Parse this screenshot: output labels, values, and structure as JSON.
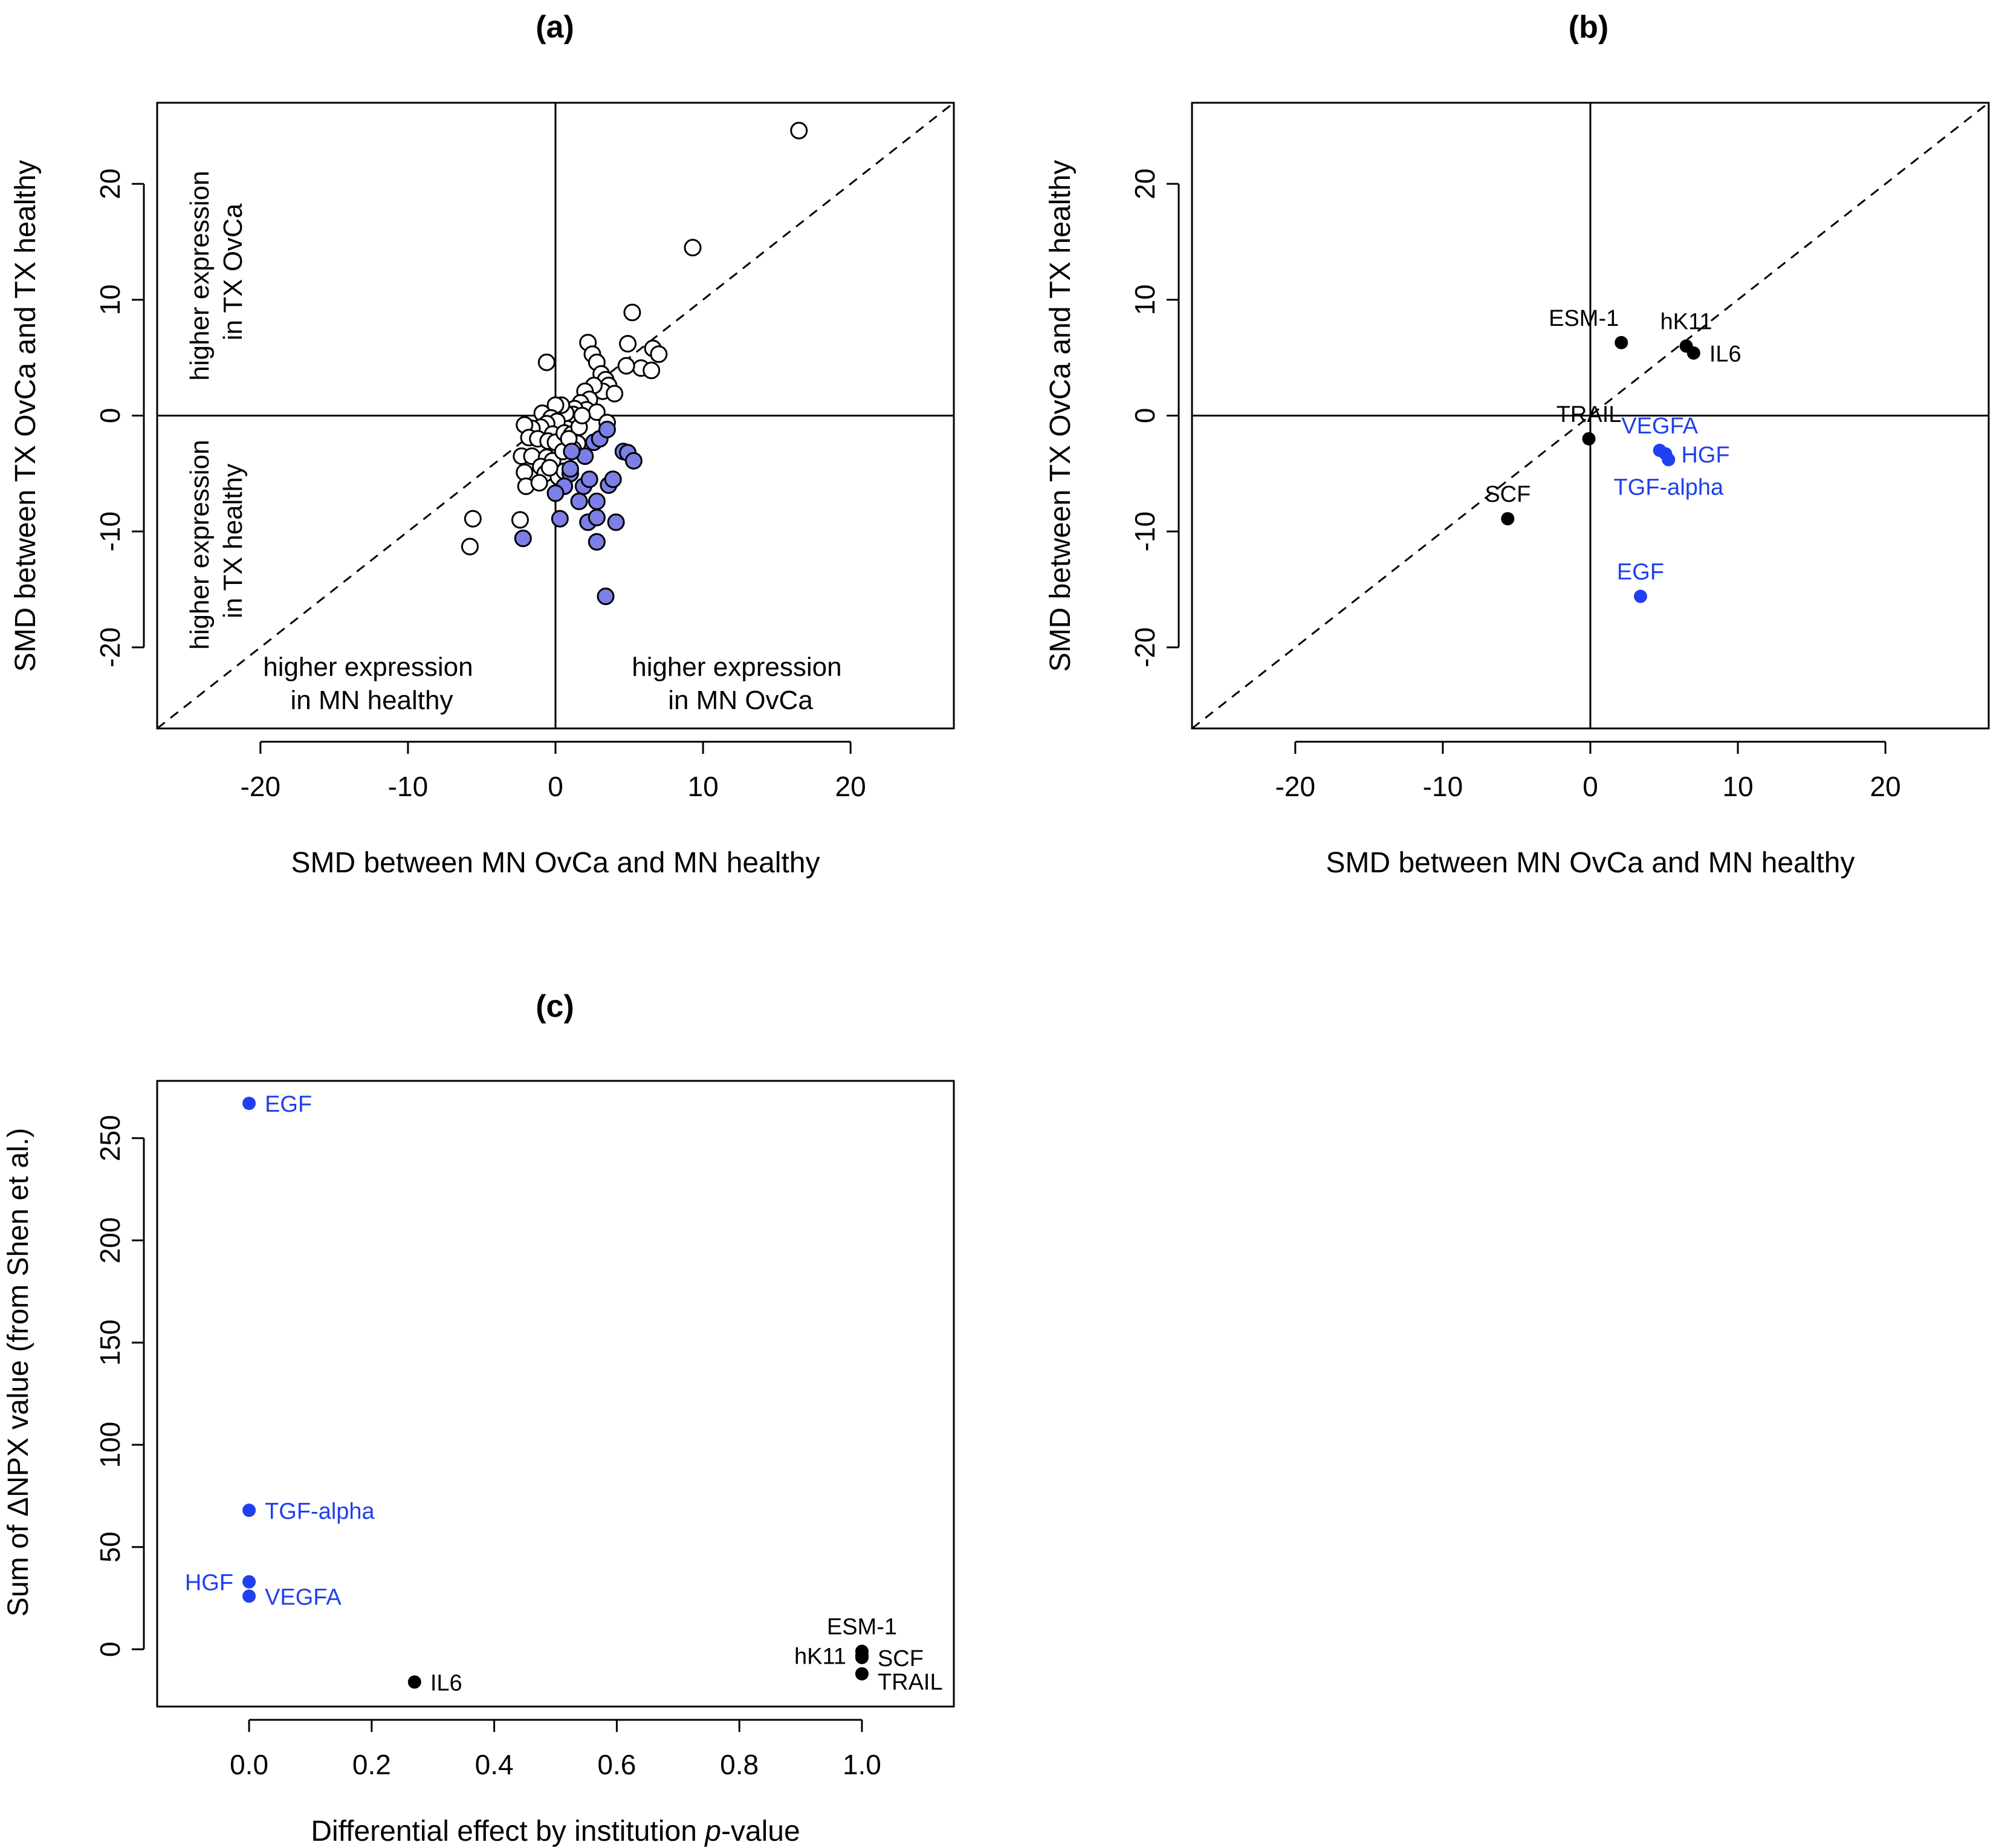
{
  "chart_data": [
    {
      "id": "a",
      "type": "scatter",
      "title": "(a)",
      "xlabel": "SMD between MN OvCa and MN healthy",
      "ylabel": "SMD between TX OvCa and TX healthy",
      "xlim": [
        -27,
        27
      ],
      "ylim": [
        -27,
        27
      ],
      "xticks": [
        -20,
        -10,
        0,
        10,
        20
      ],
      "yticks": [
        -20,
        -10,
        0,
        10,
        20
      ],
      "reference_lines": [
        "x=0",
        "y=0",
        "y=x dashed"
      ],
      "quadrant_labels": [
        {
          "text": [
            "higher expression",
            "in TX OvCa"
          ],
          "quadrant": "upper-left",
          "rotated": true
        },
        {
          "text": [
            "higher expression",
            "in TX healthy"
          ],
          "quadrant": "lower-left",
          "rotated": true
        },
        {
          "text": [
            "higher expression",
            "in MN healthy"
          ],
          "quadrant": "bottom-left"
        },
        {
          "text": [
            "higher expression",
            "in MN OvCa"
          ],
          "quadrant": "bottom-right"
        }
      ],
      "series": [
        {
          "color": "#ffffff",
          "stroke": "#000000",
          "points": [
            [
              16.5,
              24.6
            ],
            [
              9.3,
              14.5
            ],
            [
              5.2,
              8.9
            ],
            [
              6.6,
              5.8
            ],
            [
              7.0,
              5.3
            ],
            [
              4.9,
              6.2
            ],
            [
              5.8,
              4.1
            ],
            [
              6.5,
              3.9
            ],
            [
              4.8,
              4.3
            ],
            [
              2.2,
              6.3
            ],
            [
              2.5,
              5.3
            ],
            [
              2.8,
              4.6
            ],
            [
              3.1,
              3.6
            ],
            [
              3.4,
              3.1
            ],
            [
              3.6,
              2.6
            ],
            [
              3.2,
              2.1
            ],
            [
              4.0,
              1.9
            ],
            [
              2.6,
              2.6
            ],
            [
              2.0,
              2.1
            ],
            [
              2.3,
              1.4
            ],
            [
              1.7,
              1.1
            ],
            [
              2.1,
              0.5
            ],
            [
              1.3,
              0.6
            ],
            [
              1.2,
              0.1
            ],
            [
              0.7,
              0.2
            ],
            [
              0.4,
              0.9
            ],
            [
              0.0,
              0.9
            ],
            [
              -0.6,
              4.6
            ],
            [
              -0.9,
              0.2
            ],
            [
              -0.3,
              -0.2
            ],
            [
              0.1,
              -0.5
            ],
            [
              -0.6,
              -0.7
            ],
            [
              -1.0,
              -1.0
            ],
            [
              -1.6,
              -1.1
            ],
            [
              -2.1,
              -0.8
            ],
            [
              -0.2,
              -1.6
            ],
            [
              -1.8,
              -1.9
            ],
            [
              -1.2,
              -2.0
            ],
            [
              -0.5,
              -2.2
            ],
            [
              0.0,
              -2.3
            ],
            [
              0.6,
              -1.5
            ],
            [
              1.1,
              -1.6
            ],
            [
              1.5,
              -2.4
            ],
            [
              -2.3,
              -3.5
            ],
            [
              -1.6,
              -3.5
            ],
            [
              -0.6,
              -3.6
            ],
            [
              -0.2,
              -3.9
            ],
            [
              0.5,
              -3.1
            ],
            [
              1.2,
              -2.9
            ],
            [
              -2.1,
              -4.9
            ],
            [
              -1.0,
              -4.4
            ],
            [
              -0.7,
              -5.0
            ],
            [
              -2.0,
              -6.1
            ],
            [
              -1.1,
              -5.8
            ],
            [
              0.2,
              -5.3
            ],
            [
              -2.4,
              -9.0
            ],
            [
              -5.6,
              -8.9
            ],
            [
              -5.8,
              -11.3
            ],
            [
              0.6,
              -4.8
            ],
            [
              1.6,
              -1.0
            ],
            [
              2.8,
              0.3
            ],
            [
              3.5,
              -0.6
            ],
            [
              0.9,
              -2.0
            ],
            [
              -0.4,
              -4.5
            ],
            [
              1.8,
              0.0
            ]
          ]
        },
        {
          "color": "#7b7fe6",
          "stroke": "#000000",
          "points": [
            [
              3.4,
              -15.6
            ],
            [
              2.8,
              -10.9
            ],
            [
              -2.2,
              -10.6
            ],
            [
              2.2,
              -9.2
            ],
            [
              4.1,
              -9.2
            ],
            [
              2.8,
              -8.8
            ],
            [
              0.3,
              -8.9
            ],
            [
              3.6,
              -6.0
            ],
            [
              1.9,
              -6.1
            ],
            [
              1.6,
              -7.4
            ],
            [
              2.8,
              -7.4
            ],
            [
              2.3,
              -5.5
            ],
            [
              3.9,
              -5.5
            ],
            [
              1.0,
              -5.0
            ],
            [
              0.6,
              -6.1
            ],
            [
              0.0,
              -6.7
            ],
            [
              4.6,
              -3.1
            ],
            [
              4.9,
              -3.2
            ],
            [
              5.3,
              -3.9
            ],
            [
              2.0,
              -3.5
            ],
            [
              1.1,
              -3.1
            ],
            [
              2.6,
              -2.3
            ],
            [
              3.0,
              -2.0
            ],
            [
              3.5,
              -1.2
            ],
            [
              1.0,
              -4.6
            ]
          ]
        }
      ]
    },
    {
      "id": "b",
      "type": "scatter",
      "title": "(b)",
      "xlabel": "SMD between MN OvCa and MN healthy",
      "ylabel": "SMD between TX OvCa and TX healthy",
      "xlim": [
        -27,
        27
      ],
      "ylim": [
        -27,
        27
      ],
      "xticks": [
        -20,
        -10,
        0,
        10,
        20
      ],
      "yticks": [
        -20,
        -10,
        0,
        10,
        20
      ],
      "reference_lines": [
        "x=0",
        "y=0",
        "y=x dashed"
      ],
      "points": [
        {
          "label": "ESM-1",
          "x": 2.1,
          "y": 6.3,
          "color": "#000000",
          "label_pos": "above-left"
        },
        {
          "label": "hK11",
          "x": 6.5,
          "y": 6.0,
          "color": "#000000",
          "label_pos": "above"
        },
        {
          "label": "IL6",
          "x": 7.0,
          "y": 5.4,
          "color": "#000000",
          "label_pos": "right"
        },
        {
          "label": "TRAIL",
          "x": -0.1,
          "y": -2.0,
          "color": "#000000",
          "label_pos": "above"
        },
        {
          "label": "VEGFA",
          "x": 4.7,
          "y": -3.0,
          "color": "#1f3ff0",
          "label_pos": "above"
        },
        {
          "label": "HGF",
          "x": 5.1,
          "y": -3.3,
          "color": "#1f3ff0",
          "label_pos": "right"
        },
        {
          "label": "TGF-alpha",
          "x": 5.3,
          "y": -3.8,
          "color": "#1f3ff0",
          "label_pos": "below"
        },
        {
          "label": "SCF",
          "x": -5.6,
          "y": -8.9,
          "color": "#000000",
          "label_pos": "above"
        },
        {
          "label": "EGF",
          "x": 3.4,
          "y": -15.6,
          "color": "#1f3ff0",
          "label_pos": "above"
        }
      ]
    },
    {
      "id": "c",
      "type": "scatter",
      "title": "(c)",
      "xlabel_parts": [
        "Differential effect by institution ",
        "p",
        "-value"
      ],
      "ylabel": "Sum of ΔNPX value (from Shen et al.)",
      "xlim": [
        -0.15,
        1.15
      ],
      "ylim": [
        -28,
        278
      ],
      "xticks": [
        0.0,
        0.2,
        0.4,
        0.6,
        0.8,
        1.0
      ],
      "xtick_labels": [
        "0.0",
        "0.2",
        "0.4",
        "0.6",
        "0.8",
        "1.0"
      ],
      "yticks": [
        0,
        50,
        100,
        150,
        200,
        250
      ],
      "points": [
        {
          "label": "EGF",
          "x": 0.0,
          "y": 267,
          "color": "#1f3ff0",
          "label_pos": "right"
        },
        {
          "label": "TGF-alpha",
          "x": 0.0,
          "y": 68,
          "color": "#1f3ff0",
          "label_pos": "right"
        },
        {
          "label": "HGF",
          "x": 0.0,
          "y": 33,
          "color": "#1f3ff0",
          "label_pos": "left"
        },
        {
          "label": "VEGFA",
          "x": 0.0,
          "y": 26,
          "color": "#1f3ff0",
          "label_pos": "right"
        },
        {
          "label": "IL6",
          "x": 0.27,
          "y": -16,
          "color": "#000000",
          "label_pos": "right"
        },
        {
          "label": "ESM-1",
          "x": 1.0,
          "y": -1,
          "color": "#000000",
          "label_pos": "above"
        },
        {
          "label": "hK11",
          "x": 1.0,
          "y": -3,
          "color": "#000000",
          "label_pos": "left"
        },
        {
          "label": "SCF",
          "x": 1.0,
          "y": -4,
          "color": "#000000",
          "label_pos": "right"
        },
        {
          "label": "TRAIL",
          "x": 1.0,
          "y": -12,
          "color": "#000000",
          "label_pos": "right-below"
        }
      ]
    }
  ]
}
